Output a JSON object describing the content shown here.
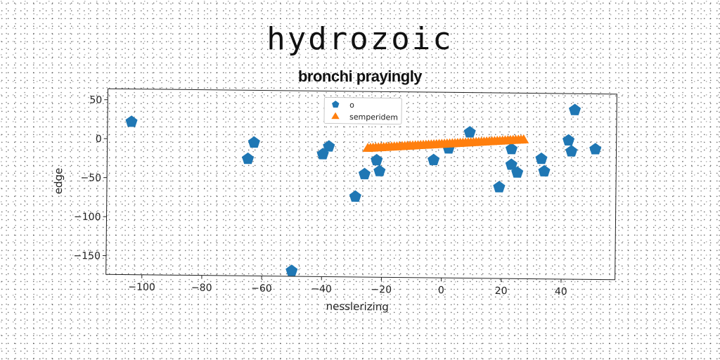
{
  "chart_data": {
    "type": "scatter",
    "title": "hydrozoic",
    "subtitle": "bronchi prayingly",
    "xlabel": "nesslerizing",
    "ylabel": "edge",
    "xlim": [
      -112,
      58
    ],
    "ylim": [
      -174,
      64
    ],
    "xticks": [
      -100,
      -80,
      -60,
      -40,
      -20,
      0,
      20,
      40
    ],
    "xtick_labels": [
      "−100",
      "−80",
      "−60",
      "−40",
      "−20",
      "0",
      "20",
      "40"
    ],
    "yticks": [
      50,
      0,
      -50,
      -100,
      -150
    ],
    "ytick_labels": [
      "50",
      "0",
      "−50",
      "−100",
      "−150"
    ],
    "grid": false,
    "legend": "top-center",
    "series": [
      {
        "name": "o",
        "marker": "pentagon",
        "color": "#1f77b4",
        "points": [
          [
            -104,
            22
          ],
          [
            -63,
            -3
          ],
          [
            -65,
            -24
          ],
          [
            -50,
            -167
          ],
          [
            -40,
            -17
          ],
          [
            -38,
            -7
          ],
          [
            -29,
            -71
          ],
          [
            -26,
            -42
          ],
          [
            -22,
            -24
          ],
          [
            -21,
            -38
          ],
          [
            -3,
            -23
          ],
          [
            2,
            -8
          ],
          [
            9,
            13
          ],
          [
            19,
            -57
          ],
          [
            23,
            -8
          ],
          [
            23,
            -28
          ],
          [
            25,
            -38
          ],
          [
            33,
            -20
          ],
          [
            34,
            -36
          ],
          [
            42,
            4
          ],
          [
            43,
            -10
          ],
          [
            44,
            43
          ],
          [
            51,
            -7
          ]
        ]
      },
      {
        "name": "semperidem",
        "marker": "triangle",
        "color": "#ff7f0e",
        "x_range": [
          -25,
          27
        ],
        "y_range": [
          -9,
          4
        ],
        "count": 60
      }
    ]
  }
}
